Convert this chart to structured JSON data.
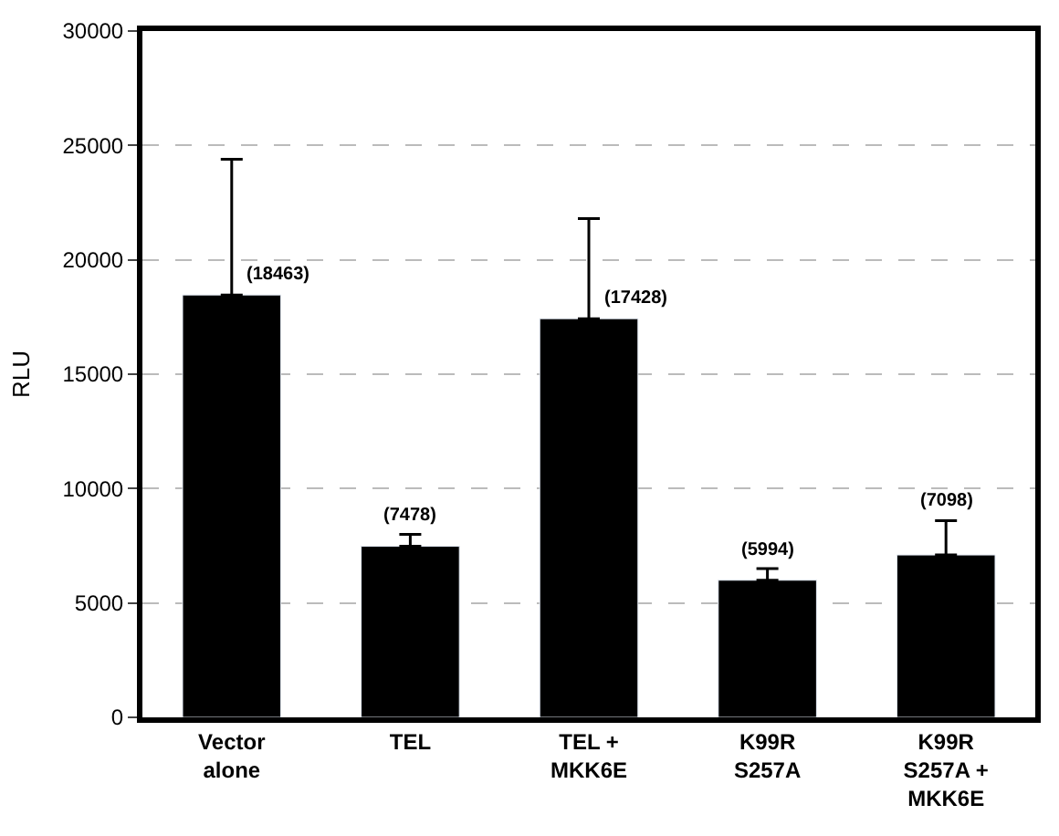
{
  "chart_data": {
    "type": "bar",
    "ylabel": "RLU",
    "categories": [
      "Vector\nalone",
      "TEL",
      "TEL +\nMKK6E",
      "K99R\nS257A",
      "K99R\nS257A +\nMKK6E"
    ],
    "values": [
      18463,
      7478,
      17428,
      5994,
      7098
    ],
    "value_labels": [
      "(18463)",
      "(7478)",
      "(17428)",
      "(5994)",
      "(7098)"
    ],
    "errors": [
      [
        18463,
        24400
      ],
      [
        7478,
        8000
      ],
      [
        17428,
        21800
      ],
      [
        5994,
        6500
      ],
      [
        7098,
        8600
      ]
    ],
    "color": "#000000",
    "ylim": [
      0,
      30000
    ],
    "yticks": [
      0,
      5000,
      10000,
      15000,
      20000,
      25000,
      30000
    ],
    "grid": "y"
  }
}
